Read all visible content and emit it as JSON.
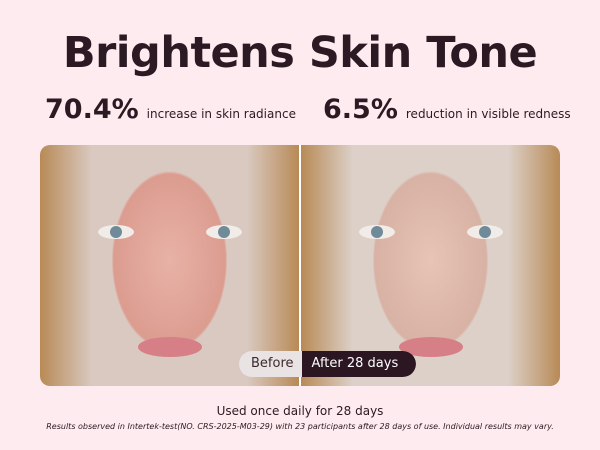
{
  "title": "Brightens Skin Tone",
  "stats": [
    {
      "value": "70.4%",
      "label": "increase in skin radiance"
    },
    {
      "value": "6.5%",
      "label": "reduction in visible redness"
    }
  ],
  "toggle": {
    "before": "Before",
    "after": "After 28 days",
    "selected": "After 28 days"
  },
  "usage": "Used once daily for 28 days",
  "disclaimer": "Results observed in Intertek-test(NO. CRS-2025-M03-29) with 23 participants  after 28 days of use.  Individual results may vary."
}
